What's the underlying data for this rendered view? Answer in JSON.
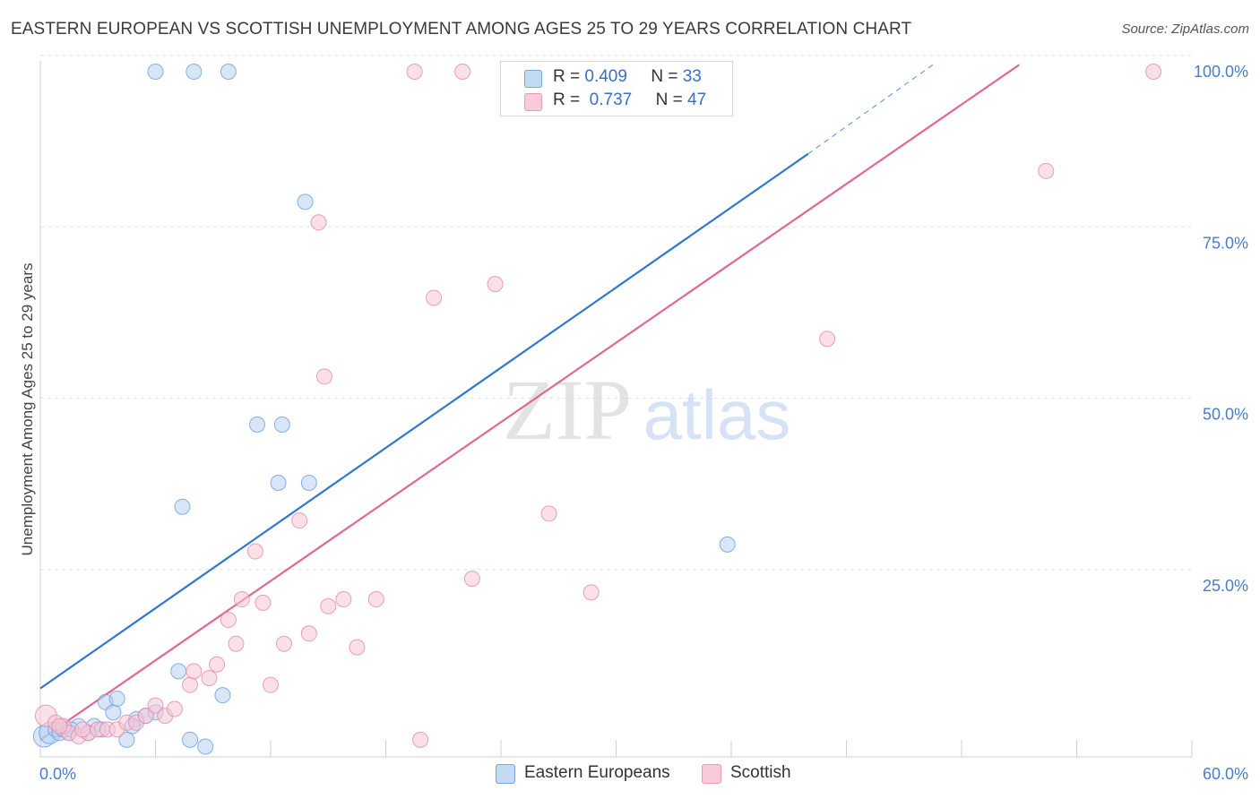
{
  "title": "EASTERN EUROPEAN VS SCOTTISH UNEMPLOYMENT AMONG AGES 25 TO 29 YEARS CORRELATION CHART",
  "source": "Source: ZipAtlas.com",
  "watermark": {
    "zip": "ZIP",
    "atlas": "atlas"
  },
  "legend": {
    "eastern": {
      "r_label": "R =",
      "r_value": "0.409",
      "n_label": "N =",
      "n_value": "33"
    },
    "scottish": {
      "r_label": "R =",
      "r_value": "0.737",
      "n_label": "N =",
      "n_value": "47"
    }
  },
  "colors": {
    "eastern_fill": "#b8d2f2",
    "eastern_stroke": "#6a9fdb",
    "eastern_line": "#2f78d0",
    "scottish_fill": "#f8c6d5",
    "scottish_stroke": "#e58aa8",
    "scottish_line": "#e06791",
    "grid": "#e2e2e2",
    "tick_text": "#4a7cc9"
  },
  "chart_data": {
    "type": "scatter",
    "title": "EASTERN EUROPEAN VS SCOTTISH UNEMPLOYMENT AMONG AGES 25 TO 29 YEARS CORRELATION CHART",
    "xlabel": "",
    "ylabel": "Unemployment Among Ages 25 to 29 years",
    "xlim": [
      0,
      60
    ],
    "ylim": [
      0,
      100
    ],
    "x_tick_labels": [
      "0.0%",
      "60.0%"
    ],
    "y_ticks": [
      25,
      50,
      75,
      100
    ],
    "y_tick_labels": [
      "25.0%",
      "50.0%",
      "75.0%",
      "100.0%"
    ],
    "grid": true,
    "legend_position": "top-center",
    "series": [
      {
        "name": "Eastern Europeans",
        "points": [
          [
            0.2,
            3.0
          ],
          [
            0.5,
            3.5
          ],
          [
            0.8,
            4.0
          ],
          [
            1.0,
            3.5
          ],
          [
            1.2,
            4.0
          ],
          [
            1.5,
            3.5
          ],
          [
            2.0,
            4.5
          ],
          [
            2.8,
            4.5
          ],
          [
            3.4,
            8.0
          ],
          [
            3.8,
            6.5
          ],
          [
            4.0,
            8.5
          ],
          [
            4.5,
            2.5
          ],
          [
            5.0,
            5.5
          ],
          [
            5.5,
            6.0
          ],
          [
            6.0,
            6.5
          ],
          [
            6.0,
            100.0
          ],
          [
            7.2,
            12.5
          ],
          [
            7.4,
            36.5
          ],
          [
            7.8,
            2.5
          ],
          [
            8.0,
            100.0
          ],
          [
            8.6,
            1.5
          ],
          [
            9.5,
            9.0
          ],
          [
            9.8,
            100.0
          ],
          [
            11.3,
            48.5
          ],
          [
            12.4,
            40.0
          ],
          [
            12.6,
            48.5
          ],
          [
            13.8,
            81.0
          ],
          [
            14.0,
            40.0
          ],
          [
            35.8,
            31.0
          ],
          [
            1.6,
            4.0
          ],
          [
            2.5,
            3.5
          ],
          [
            4.8,
            4.5
          ],
          [
            3.2,
            4.0
          ]
        ]
      },
      {
        "name": "Scottish",
        "points": [
          [
            0.3,
            6.0
          ],
          [
            0.8,
            5.0
          ],
          [
            1.2,
            4.5
          ],
          [
            1.5,
            3.5
          ],
          [
            2.0,
            3.0
          ],
          [
            2.5,
            3.5
          ],
          [
            3.0,
            4.0
          ],
          [
            3.5,
            4.0
          ],
          [
            4.0,
            4.0
          ],
          [
            4.5,
            5.0
          ],
          [
            5.0,
            5.0
          ],
          [
            5.5,
            6.0
          ],
          [
            6.0,
            7.5
          ],
          [
            6.5,
            6.0
          ],
          [
            7.0,
            7.0
          ],
          [
            7.8,
            10.5
          ],
          [
            8.0,
            12.5
          ],
          [
            8.8,
            11.5
          ],
          [
            9.2,
            13.5
          ],
          [
            9.8,
            20.0
          ],
          [
            10.2,
            16.5
          ],
          [
            10.5,
            23.0
          ],
          [
            11.2,
            30.0
          ],
          [
            11.6,
            22.5
          ],
          [
            12.0,
            10.5
          ],
          [
            12.7,
            16.5
          ],
          [
            13.5,
            34.5
          ],
          [
            14.0,
            18.0
          ],
          [
            14.5,
            78.0
          ],
          [
            14.8,
            55.5
          ],
          [
            15.0,
            22.0
          ],
          [
            15.8,
            23.0
          ],
          [
            16.5,
            16.0
          ],
          [
            17.5,
            23.0
          ],
          [
            19.5,
            100.0
          ],
          [
            19.8,
            2.5
          ],
          [
            20.5,
            67.0
          ],
          [
            22.0,
            100.0
          ],
          [
            22.5,
            26.0
          ],
          [
            23.7,
            69.0
          ],
          [
            26.5,
            35.5
          ],
          [
            28.7,
            24.0
          ],
          [
            41.0,
            61.0
          ],
          [
            52.4,
            85.5
          ],
          [
            58.0,
            100.0
          ],
          [
            1.0,
            4.5
          ],
          [
            2.2,
            4.0
          ]
        ]
      }
    ],
    "trendlines": [
      {
        "series": "Eastern Europeans",
        "x": [
          0,
          40
        ],
        "y": [
          10.0,
          88.0
        ],
        "dashed_x": [
          40,
          46.5
        ],
        "dashed_y": [
          88.0,
          101.0
        ]
      },
      {
        "series": "Scottish",
        "x": [
          0,
          51.0
        ],
        "y": [
          2.5,
          101.0
        ]
      }
    ]
  },
  "bottom_legend": [
    {
      "label": "Eastern Europeans"
    },
    {
      "label": "Scottish"
    }
  ]
}
